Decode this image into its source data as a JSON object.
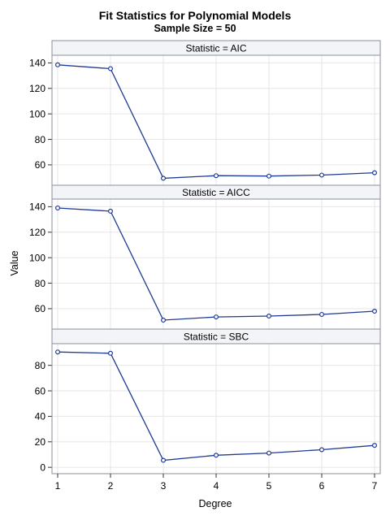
{
  "chart_data": {
    "type": "line",
    "title": "Fit Statistics for Polynomial Models",
    "subtitle": "Sample Size = 50",
    "xlabel": "Degree",
    "ylabel": "Value",
    "x": [
      1,
      2,
      3,
      4,
      5,
      6,
      7
    ],
    "xticks": [
      "1",
      "2",
      "3",
      "4",
      "5",
      "6",
      "7"
    ],
    "xlim": [
      1,
      7
    ],
    "grid": true,
    "colors": {
      "series": "#1f3a93",
      "marker_fill": "#ffffff",
      "header_bg": "#f2f4f8",
      "frame": "#8a8f99",
      "grid": "#e6e6e6"
    },
    "panels": [
      {
        "header": "Statistic = AIC",
        "ylim": [
          44,
          146
        ],
        "yticks": [
          60,
          80,
          100,
          120,
          140
        ],
        "values": [
          138.5,
          135.5,
          49.5,
          51.5,
          51.2,
          52.0,
          53.8
        ]
      },
      {
        "header": "Statistic = AICC",
        "ylim": [
          44,
          146
        ],
        "yticks": [
          60,
          80,
          100,
          120,
          140
        ],
        "values": [
          139.0,
          136.5,
          51.0,
          53.5,
          54.2,
          55.5,
          58.0
        ]
      },
      {
        "header": "Statistic = SBC",
        "ylim": [
          -5,
          97
        ],
        "yticks": [
          0,
          20,
          40,
          60,
          80
        ],
        "values": [
          90.5,
          89.5,
          5.5,
          9.5,
          11.2,
          13.8,
          17.2
        ]
      }
    ]
  }
}
